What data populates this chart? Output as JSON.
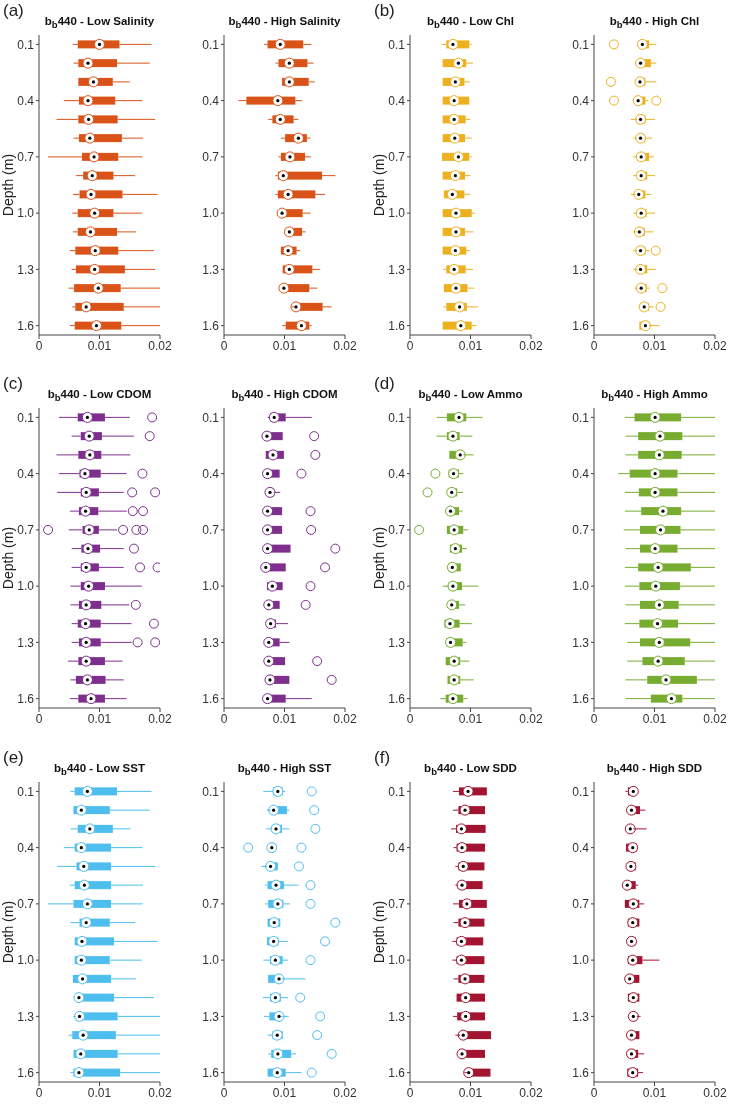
{
  "chart_data": [
    {
      "type": "box",
      "orientation": "horizontal",
      "title": "b$_{b}$440 - Low Salinity",
      "ylabel": "Depth (m)",
      "annotations": [
        "(a)"
      ],
      "color": "#d95319",
      "xlim": [
        0,
        0.02
      ],
      "xticks": [
        0,
        0.01,
        0.02
      ],
      "categories": [
        "0.1",
        null,
        null,
        "0.4",
        null,
        null,
        "0.7",
        null,
        null,
        "1.0",
        null,
        null,
        "1.3",
        null,
        null,
        "1.6"
      ],
      "boxes": [
        {
          "low": 0.0056,
          "q1": 0.0064,
          "median": 0.01,
          "q3": 0.0133,
          "high": 0.0186
        },
        {
          "low": 0.0057,
          "q1": 0.0065,
          "median": 0.0081,
          "q3": 0.0129,
          "high": 0.0183
        },
        {
          "low": 0.0065,
          "q1": 0.0065,
          "median": 0.009,
          "q3": 0.0122,
          "high": 0.015
        },
        {
          "low": 0.0041,
          "q1": 0.0066,
          "median": 0.0081,
          "q3": 0.0126,
          "high": 0.0171
        },
        {
          "low": 0.0029,
          "q1": 0.0065,
          "median": 0.0082,
          "q3": 0.013,
          "high": 0.0192
        },
        {
          "low": 0.0057,
          "q1": 0.0066,
          "median": 0.0084,
          "q3": 0.0137,
          "high": 0.0172
        },
        {
          "low": 0.0015,
          "q1": 0.0071,
          "median": 0.0091,
          "q3": 0.0131,
          "high": 0.0171
        },
        {
          "low": 0.0061,
          "q1": 0.0073,
          "median": 0.0088,
          "q3": 0.0123,
          "high": 0.0159
        },
        {
          "low": 0.0056,
          "q1": 0.0067,
          "median": 0.0086,
          "q3": 0.0138,
          "high": 0.0196
        },
        {
          "low": 0.0055,
          "q1": 0.0064,
          "median": 0.0092,
          "q3": 0.0123,
          "high": 0.017
        },
        {
          "low": 0.0056,
          "q1": 0.0064,
          "median": 0.0085,
          "q3": 0.0129,
          "high": 0.016
        },
        {
          "low": 0.0051,
          "q1": 0.006,
          "median": 0.0093,
          "q3": 0.0131,
          "high": 0.019
        },
        {
          "low": 0.0054,
          "q1": 0.0061,
          "median": 0.0092,
          "q3": 0.0142,
          "high": 0.0192
        },
        {
          "low": 0.0049,
          "q1": 0.0058,
          "median": 0.0098,
          "q3": 0.0135,
          "high": 0.02
        },
        {
          "low": 0.0055,
          "q1": 0.006,
          "median": 0.0078,
          "q3": 0.014,
          "high": 0.02
        },
        {
          "low": 0.0051,
          "q1": 0.0059,
          "median": 0.0095,
          "q3": 0.0136,
          "high": 0.02
        }
      ]
    },
    {
      "type": "box",
      "orientation": "horizontal",
      "title": "b$_{b}$440 - High Salinity",
      "color": "#d95319",
      "xlim": [
        0,
        0.02
      ],
      "xticks": [
        0,
        0.01,
        0.02
      ],
      "categories": [
        "0.1",
        null,
        null,
        "0.4",
        null,
        null,
        "0.7",
        null,
        null,
        "1.0",
        null,
        null,
        "1.3",
        null,
        null,
        "1.6"
      ],
      "boxes": [
        {
          "low": 0.0066,
          "q1": 0.0072,
          "median": 0.0093,
          "q3": 0.0131,
          "high": 0.0144
        },
        {
          "low": 0.0085,
          "q1": 0.009,
          "median": 0.0108,
          "q3": 0.0138,
          "high": 0.0148
        },
        {
          "low": 0.0096,
          "q1": 0.0096,
          "median": 0.0108,
          "q3": 0.014,
          "high": 0.015
        },
        {
          "low": 0.0024,
          "q1": 0.0037,
          "median": 0.0089,
          "q3": 0.0118,
          "high": 0.0129
        },
        {
          "low": 0.0073,
          "q1": 0.008,
          "median": 0.0093,
          "q3": 0.0115,
          "high": 0.0123
        },
        {
          "low": 0.0094,
          "q1": 0.0101,
          "median": 0.0123,
          "q3": 0.0137,
          "high": 0.0143
        },
        {
          "low": 0.009,
          "q1": 0.0094,
          "median": 0.0109,
          "q3": 0.0134,
          "high": 0.0144
        },
        {
          "low": 0.0085,
          "q1": 0.0089,
          "median": 0.0098,
          "q3": 0.0162,
          "high": 0.0184
        },
        {
          "low": 0.0085,
          "q1": 0.0089,
          "median": 0.0106,
          "q3": 0.0151,
          "high": 0.0167
        },
        {
          "low": 0.0091,
          "q1": 0.0091,
          "median": 0.0096,
          "q3": 0.013,
          "high": 0.0143
        },
        {
          "low": 0.0102,
          "q1": 0.0102,
          "median": 0.0108,
          "q3": 0.0129,
          "high": 0.0135
        },
        {
          "low": 0.0094,
          "q1": 0.0094,
          "median": 0.0106,
          "q3": 0.012,
          "high": 0.0126
        },
        {
          "low": 0.0097,
          "q1": 0.0097,
          "median": 0.0108,
          "q3": 0.0146,
          "high": 0.0159
        },
        {
          "low": 0.0096,
          "q1": 0.0096,
          "median": 0.0099,
          "q3": 0.0141,
          "high": 0.0154
        },
        {
          "low": 0.0112,
          "q1": 0.0116,
          "median": 0.0119,
          "q3": 0.0163,
          "high": 0.0178
        },
        {
          "low": 0.0096,
          "q1": 0.0102,
          "median": 0.0128,
          "q3": 0.0141,
          "high": 0.0145
        }
      ]
    },
    {
      "type": "box",
      "orientation": "horizontal",
      "title": "b$_{b}$440 - Low Chl",
      "ylabel": "Depth (m)",
      "annotations": [
        "(b)"
      ],
      "color": "#edb120",
      "xlim": [
        0,
        0.02
      ],
      "xticks": [
        0,
        0.01,
        0.02
      ],
      "categories": [
        "0.1",
        null,
        null,
        "0.4",
        null,
        null,
        "0.7",
        null,
        null,
        "1.0",
        null,
        null,
        "1.3",
        null,
        null,
        "1.6"
      ],
      "boxes": [
        {
          "low": 0.0052,
          "q1": 0.006,
          "median": 0.0071,
          "q3": 0.0098,
          "high": 0.0102
        },
        {
          "low": 0.0054,
          "q1": 0.0054,
          "median": 0.008,
          "q3": 0.0093,
          "high": 0.0104
        },
        {
          "low": 0.0054,
          "q1": 0.0054,
          "median": 0.0075,
          "q3": 0.009,
          "high": 0.0099
        },
        {
          "low": 0.0054,
          "q1": 0.0054,
          "median": 0.0073,
          "q3": 0.0098,
          "high": 0.0098
        },
        {
          "low": 0.0054,
          "q1": 0.0054,
          "median": 0.0073,
          "q3": 0.0092,
          "high": 0.01
        },
        {
          "low": 0.0054,
          "q1": 0.0054,
          "median": 0.0074,
          "q3": 0.0091,
          "high": 0.0102
        },
        {
          "low": 0.0053,
          "q1": 0.0053,
          "median": 0.008,
          "q3": 0.0098,
          "high": 0.0102
        },
        {
          "low": 0.0054,
          "q1": 0.0054,
          "median": 0.0075,
          "q3": 0.0091,
          "high": 0.01
        },
        {
          "low": 0.0056,
          "q1": 0.0056,
          "median": 0.007,
          "q3": 0.009,
          "high": 0.0099
        },
        {
          "low": 0.0054,
          "q1": 0.0054,
          "median": 0.0076,
          "q3": 0.0102,
          "high": 0.0108
        },
        {
          "low": 0.0054,
          "q1": 0.0054,
          "median": 0.0076,
          "q3": 0.0091,
          "high": 0.0105
        },
        {
          "low": 0.0054,
          "q1": 0.0054,
          "median": 0.0075,
          "q3": 0.0093,
          "high": 0.0099
        },
        {
          "low": 0.0055,
          "q1": 0.006,
          "median": 0.0073,
          "q3": 0.0092,
          "high": 0.0104
        },
        {
          "low": 0.0056,
          "q1": 0.0056,
          "median": 0.0076,
          "q3": 0.0095,
          "high": 0.0106
        },
        {
          "low": 0.0055,
          "q1": 0.006,
          "median": 0.0082,
          "q3": 0.0094,
          "high": 0.0113
        },
        {
          "low": 0.0054,
          "q1": 0.0054,
          "median": 0.0084,
          "q3": 0.0102,
          "high": 0.011
        }
      ]
    },
    {
      "type": "box",
      "orientation": "horizontal",
      "title": "b$_{b}$440 - High Chl",
      "color": "#edb120",
      "xlim": [
        0,
        0.02
      ],
      "xticks": [
        0,
        0.01,
        0.02
      ],
      "categories": [
        "0.1",
        null,
        null,
        "0.4",
        null,
        null,
        "0.7",
        null,
        null,
        "1.0",
        null,
        null,
        "1.3",
        null,
        null,
        "1.6"
      ],
      "boxes": [
        {
          "low": 0.0074,
          "q1": 0.0074,
          "median": 0.008,
          "q3": 0.0091,
          "high": 0.0103,
          "outliers": [
            0.0033
          ]
        },
        {
          "low": 0.0073,
          "q1": 0.0073,
          "median": 0.0077,
          "q3": 0.0094,
          "high": 0.0103
        },
        {
          "low": 0.0071,
          "q1": 0.0071,
          "median": 0.0076,
          "q3": 0.0085,
          "high": 0.0103,
          "outliers": [
            0.0028
          ]
        },
        {
          "low": 0.007,
          "q1": 0.007,
          "median": 0.0073,
          "q3": 0.0085,
          "high": 0.009,
          "outliers": [
            0.0033,
            0.0103
          ]
        },
        {
          "low": 0.0061,
          "q1": 0.0071,
          "median": 0.0077,
          "q3": 0.0085,
          "high": 0.0101
        },
        {
          "low": 0.0065,
          "q1": 0.0071,
          "median": 0.0077,
          "q3": 0.0084,
          "high": 0.0096
        },
        {
          "low": 0.0065,
          "q1": 0.0071,
          "median": 0.0078,
          "q3": 0.0091,
          "high": 0.0099
        },
        {
          "low": 0.0065,
          "q1": 0.0071,
          "median": 0.0078,
          "q3": 0.0088,
          "high": 0.0101
        },
        {
          "low": 0.0061,
          "q1": 0.0069,
          "median": 0.0074,
          "q3": 0.0085,
          "high": 0.0095
        },
        {
          "low": 0.0065,
          "q1": 0.0071,
          "median": 0.0078,
          "q3": 0.0087,
          "high": 0.0101
        },
        {
          "low": 0.0065,
          "q1": 0.0071,
          "median": 0.0075,
          "q3": 0.0084,
          "high": 0.0098
        },
        {
          "low": 0.0065,
          "q1": 0.0071,
          "median": 0.0077,
          "q3": 0.0085,
          "high": 0.0092,
          "outliers": [
            0.0102
          ]
        },
        {
          "low": 0.0065,
          "q1": 0.0072,
          "median": 0.0077,
          "q3": 0.0088,
          "high": 0.0102
        },
        {
          "low": 0.0067,
          "q1": 0.0072,
          "median": 0.0078,
          "q3": 0.0087,
          "high": 0.0092,
          "outliers": [
            0.0113
          ]
        },
        {
          "low": 0.0076,
          "q1": 0.0076,
          "median": 0.0083,
          "q3": 0.0091,
          "high": 0.0099,
          "outliers": [
            0.011
          ]
        },
        {
          "low": 0.0075,
          "q1": 0.0075,
          "median": 0.0085,
          "q3": 0.0091,
          "high": 0.0108
        }
      ]
    },
    {
      "type": "box",
      "orientation": "horizontal",
      "title": "b$_{b}$440 - Low CDOM",
      "ylabel": "Depth (m)",
      "annotations": [
        "(c)"
      ],
      "color": "#7e2f8e",
      "xlim": [
        0,
        0.02
      ],
      "xticks": [
        0,
        0.01,
        0.02
      ],
      "categories": [
        "0.1",
        null,
        null,
        "0.4",
        null,
        null,
        "0.7",
        null,
        null,
        "1.0",
        null,
        null,
        "1.3",
        null,
        null,
        "1.6"
      ],
      "boxes": [
        {
          "low": 0.0033,
          "q1": 0.0064,
          "median": 0.008,
          "q3": 0.0109,
          "high": 0.015,
          "outliers": [
            0.0187
          ]
        },
        {
          "low": 0.0054,
          "q1": 0.0069,
          "median": 0.0083,
          "q3": 0.0104,
          "high": 0.0157,
          "outliers": [
            0.0183
          ]
        },
        {
          "low": 0.0029,
          "q1": 0.0065,
          "median": 0.0084,
          "q3": 0.0103,
          "high": 0.0151
        },
        {
          "low": 0.0033,
          "q1": 0.0067,
          "median": 0.0076,
          "q3": 0.0102,
          "high": 0.0145,
          "outliers": [
            0.0171
          ]
        },
        {
          "low": 0.003,
          "q1": 0.0069,
          "median": 0.0078,
          "q3": 0.0099,
          "high": 0.014,
          "outliers": [
            0.0154,
            0.0192
          ]
        },
        {
          "low": 0.0051,
          "q1": 0.0066,
          "median": 0.0077,
          "q3": 0.0098,
          "high": 0.0145,
          "outliers": [
            0.0155,
            0.0172
          ]
        },
        {
          "low": 0.0049,
          "q1": 0.0072,
          "median": 0.0083,
          "q3": 0.0099,
          "high": 0.0129,
          "outliers": [
            0.0015,
            0.0139,
            0.0161,
            0.0172
          ]
        },
        {
          "low": 0.0054,
          "q1": 0.007,
          "median": 0.0081,
          "q3": 0.0101,
          "high": 0.014,
          "outliers": [
            0.0157
          ]
        },
        {
          "low": 0.0054,
          "q1": 0.0069,
          "median": 0.0078,
          "q3": 0.0099,
          "high": 0.014,
          "outliers": [
            0.0167,
            0.0196
          ]
        },
        {
          "low": 0.0052,
          "q1": 0.0069,
          "median": 0.0082,
          "q3": 0.0109,
          "high": 0.017
        },
        {
          "low": 0.0052,
          "q1": 0.0066,
          "median": 0.0078,
          "q3": 0.0103,
          "high": 0.0149,
          "outliers": [
            0.016
          ]
        },
        {
          "low": 0.0054,
          "q1": 0.0064,
          "median": 0.0077,
          "q3": 0.0102,
          "high": 0.0153,
          "outliers": [
            0.019
          ]
        },
        {
          "low": 0.0054,
          "q1": 0.0066,
          "median": 0.0078,
          "q3": 0.0102,
          "high": 0.0153,
          "outliers": [
            0.0163,
            0.0192
          ]
        },
        {
          "low": 0.0048,
          "q1": 0.0065,
          "median": 0.0078,
          "q3": 0.0109,
          "high": 0.0138
        },
        {
          "low": 0.0052,
          "q1": 0.0061,
          "median": 0.008,
          "q3": 0.011,
          "high": 0.014
        },
        {
          "low": 0.0051,
          "q1": 0.0065,
          "median": 0.0086,
          "q3": 0.0109,
          "high": 0.0145
        }
      ]
    },
    {
      "type": "box",
      "orientation": "horizontal",
      "title": "b$_{b}$440 - High CDOM",
      "color": "#7e2f8e",
      "xlim": [
        0,
        0.02
      ],
      "xticks": [
        0,
        0.01,
        0.02
      ],
      "categories": [
        "0.1",
        null,
        null,
        "0.4",
        null,
        null,
        "0.7",
        null,
        null,
        "1.0",
        null,
        null,
        "1.3",
        null,
        null,
        "1.6"
      ],
      "boxes": [
        {
          "low": 0.0072,
          "q1": 0.0076,
          "median": 0.0083,
          "q3": 0.0102,
          "high": 0.0145
        },
        {
          "low": 0.0068,
          "q1": 0.0068,
          "median": 0.0071,
          "q3": 0.0097,
          "high": 0.0097,
          "outliers": [
            0.0149
          ]
        },
        {
          "low": 0.0069,
          "q1": 0.0069,
          "median": 0.0081,
          "q3": 0.0099,
          "high": 0.0099,
          "outliers": [
            0.0151
          ]
        },
        {
          "low": 0.0068,
          "q1": 0.0068,
          "median": 0.0072,
          "q3": 0.0092,
          "high": 0.0092,
          "outliers": [
            0.0128
          ]
        },
        {
          "low": 0.0072,
          "q1": 0.0072,
          "median": 0.0076,
          "q3": 0.0083,
          "high": 0.0093
        },
        {
          "low": 0.0068,
          "q1": 0.0068,
          "median": 0.0072,
          "q3": 0.0096,
          "high": 0.0096,
          "outliers": [
            0.0143
          ]
        },
        {
          "low": 0.0068,
          "q1": 0.0068,
          "median": 0.0072,
          "q3": 0.0096,
          "high": 0.0096,
          "outliers": [
            0.0144
          ]
        },
        {
          "low": 0.0068,
          "q1": 0.0068,
          "median": 0.0072,
          "q3": 0.011,
          "high": 0.011,
          "outliers": [
            0.0184
          ]
        },
        {
          "low": 0.0065,
          "q1": 0.0065,
          "median": 0.0069,
          "q3": 0.0102,
          "high": 0.0102,
          "outliers": [
            0.0167
          ]
        },
        {
          "low": 0.0071,
          "q1": 0.0071,
          "median": 0.008,
          "q3": 0.0097,
          "high": 0.0097,
          "outliers": [
            0.0143
          ]
        },
        {
          "low": 0.007,
          "q1": 0.007,
          "median": 0.0074,
          "q3": 0.0092,
          "high": 0.0092,
          "outliers": [
            0.0135
          ]
        },
        {
          "low": 0.0072,
          "q1": 0.0072,
          "median": 0.0077,
          "q3": 0.0086,
          "high": 0.0106
        },
        {
          "low": 0.007,
          "q1": 0.007,
          "median": 0.0074,
          "q3": 0.0092,
          "high": 0.0108
        },
        {
          "low": 0.007,
          "q1": 0.007,
          "median": 0.0074,
          "q3": 0.0101,
          "high": 0.0101,
          "outliers": [
            0.0154
          ]
        },
        {
          "low": 0.007,
          "q1": 0.007,
          "median": 0.0076,
          "q3": 0.0108,
          "high": 0.0108,
          "outliers": [
            0.0178
          ]
        },
        {
          "low": 0.0068,
          "q1": 0.0068,
          "median": 0.0072,
          "q3": 0.0102,
          "high": 0.0145
        }
      ]
    },
    {
      "type": "box",
      "orientation": "horizontal",
      "title": "b$_{b}$440 - Low Ammo",
      "ylabel": "Depth (m)",
      "annotations": [
        "(d)"
      ],
      "color": "#77ac30",
      "xlim": [
        0,
        0.02
      ],
      "xticks": [
        0,
        0.01,
        0.02
      ],
      "categories": [
        "0.1",
        null,
        null,
        "0.4",
        null,
        null,
        "0.7",
        null,
        null,
        "1.0",
        null,
        null,
        "1.3",
        null,
        null,
        "1.6"
      ],
      "boxes": [
        {
          "low": 0.0044,
          "q1": 0.0061,
          "median": 0.0081,
          "q3": 0.0093,
          "high": 0.012
        },
        {
          "low": 0.0044,
          "q1": 0.0061,
          "median": 0.0071,
          "q3": 0.0082,
          "high": 0.0103
        },
        {
          "low": 0.0065,
          "q1": 0.0065,
          "median": 0.0083,
          "q3": 0.0088,
          "high": 0.0105
        },
        {
          "low": 0.0064,
          "q1": 0.0064,
          "median": 0.0072,
          "q3": 0.0081,
          "high": 0.0088,
          "outliers": [
            0.0042
          ]
        },
        {
          "low": 0.0063,
          "q1": 0.0063,
          "median": 0.0069,
          "q3": 0.0078,
          "high": 0.0088,
          "outliers": [
            0.0029
          ]
        },
        {
          "low": 0.0061,
          "q1": 0.0061,
          "median": 0.0067,
          "q3": 0.0081,
          "high": 0.0087
        },
        {
          "low": 0.0061,
          "q1": 0.0061,
          "median": 0.0073,
          "q3": 0.0088,
          "high": 0.0096,
          "outliers": [
            0.0015
          ]
        },
        {
          "low": 0.0066,
          "q1": 0.0066,
          "median": 0.0075,
          "q3": 0.0086,
          "high": 0.0094
        },
        {
          "low": 0.0063,
          "q1": 0.0063,
          "median": 0.007,
          "q3": 0.0084,
          "high": 0.0084
        },
        {
          "low": 0.0054,
          "q1": 0.0064,
          "median": 0.0071,
          "q3": 0.0086,
          "high": 0.0113
        },
        {
          "low": 0.0063,
          "q1": 0.0063,
          "median": 0.0069,
          "q3": 0.0081,
          "high": 0.0091
        },
        {
          "low": 0.0057,
          "q1": 0.0057,
          "median": 0.0066,
          "q3": 0.0082,
          "high": 0.0102
        },
        {
          "low": 0.006,
          "q1": 0.006,
          "median": 0.0067,
          "q3": 0.0087,
          "high": 0.0093
        },
        {
          "low": 0.0059,
          "q1": 0.0059,
          "median": 0.0073,
          "q3": 0.0083,
          "high": 0.0098
        },
        {
          "low": 0.0062,
          "q1": 0.0062,
          "median": 0.0073,
          "q3": 0.0083,
          "high": 0.0105
        },
        {
          "low": 0.005,
          "q1": 0.0059,
          "median": 0.0071,
          "q3": 0.0088,
          "high": 0.0095
        }
      ]
    },
    {
      "type": "box",
      "orientation": "horizontal",
      "title": "b$_{b}$440 - High Ammo",
      "color": "#77ac30",
      "xlim": [
        0,
        0.02
      ],
      "xticks": [
        0,
        0.01,
        0.02
      ],
      "categories": [
        "0.1",
        null,
        null,
        "0.4",
        null,
        null,
        "0.7",
        null,
        null,
        "1.0",
        null,
        null,
        "1.3",
        null,
        null,
        "1.6"
      ],
      "boxes": [
        {
          "low": 0.0051,
          "q1": 0.0067,
          "median": 0.0101,
          "q3": 0.0144,
          "high": 0.02
        },
        {
          "low": 0.0052,
          "q1": 0.0073,
          "median": 0.0109,
          "q3": 0.0146,
          "high": 0.02
        },
        {
          "low": 0.0052,
          "q1": 0.0073,
          "median": 0.0108,
          "q3": 0.0145,
          "high": 0.02
        },
        {
          "low": 0.004,
          "q1": 0.0059,
          "median": 0.0101,
          "q3": 0.0138,
          "high": 0.02
        },
        {
          "low": 0.0051,
          "q1": 0.0074,
          "median": 0.0101,
          "q3": 0.0138,
          "high": 0.02
        },
        {
          "low": 0.0051,
          "q1": 0.0078,
          "median": 0.0114,
          "q3": 0.0144,
          "high": 0.02
        },
        {
          "low": 0.0049,
          "q1": 0.0076,
          "median": 0.011,
          "q3": 0.0143,
          "high": 0.02
        },
        {
          "low": 0.0052,
          "q1": 0.0076,
          "median": 0.0101,
          "q3": 0.0138,
          "high": 0.02
        },
        {
          "low": 0.0051,
          "q1": 0.0073,
          "median": 0.0106,
          "q3": 0.016,
          "high": 0.02
        },
        {
          "low": 0.0051,
          "q1": 0.0075,
          "median": 0.0102,
          "q3": 0.0142,
          "high": 0.02
        },
        {
          "low": 0.0052,
          "q1": 0.0076,
          "median": 0.0108,
          "q3": 0.014,
          "high": 0.02
        },
        {
          "low": 0.0051,
          "q1": 0.0075,
          "median": 0.0105,
          "q3": 0.0139,
          "high": 0.02
        },
        {
          "low": 0.0055,
          "q1": 0.0076,
          "median": 0.0108,
          "q3": 0.0159,
          "high": 0.02
        },
        {
          "low": 0.0055,
          "q1": 0.008,
          "median": 0.0106,
          "q3": 0.015,
          "high": 0.02
        },
        {
          "low": 0.0052,
          "q1": 0.0088,
          "median": 0.0119,
          "q3": 0.017,
          "high": 0.02
        },
        {
          "low": 0.0052,
          "q1": 0.0094,
          "median": 0.0128,
          "q3": 0.0146,
          "high": 0.02
        }
      ]
    },
    {
      "type": "box",
      "orientation": "horizontal",
      "title": "b$_{b}$440 - Low SST",
      "ylabel": "Depth (m)",
      "annotations": [
        "(e)"
      ],
      "color": "#4dbeee",
      "xlim": [
        0,
        0.02
      ],
      "xticks": [
        0,
        0.01,
        0.02
      ],
      "categories": [
        "0.1",
        null,
        null,
        "0.4",
        null,
        null,
        "0.7",
        null,
        null,
        "1.0",
        null,
        null,
        "1.3",
        null,
        null,
        "1.6"
      ],
      "boxes": [
        {
          "low": 0.0052,
          "q1": 0.0059,
          "median": 0.008,
          "q3": 0.0129,
          "high": 0.0186
        },
        {
          "low": 0.0057,
          "q1": 0.0057,
          "median": 0.007,
          "q3": 0.0117,
          "high": 0.0183
        },
        {
          "low": 0.0052,
          "q1": 0.0064,
          "median": 0.0084,
          "q3": 0.0122,
          "high": 0.0151
        },
        {
          "low": 0.0041,
          "q1": 0.0059,
          "median": 0.007,
          "q3": 0.0119,
          "high": 0.0171
        },
        {
          "low": 0.003,
          "q1": 0.0062,
          "median": 0.0074,
          "q3": 0.0119,
          "high": 0.0192
        },
        {
          "low": 0.0051,
          "q1": 0.0059,
          "median": 0.0075,
          "q3": 0.0119,
          "high": 0.0172
        },
        {
          "low": 0.0015,
          "q1": 0.0057,
          "median": 0.008,
          "q3": 0.0119,
          "high": 0.0171
        },
        {
          "low": 0.0052,
          "q1": 0.0067,
          "median": 0.0078,
          "q3": 0.0117,
          "high": 0.0159
        },
        {
          "low": 0.0059,
          "q1": 0.0059,
          "median": 0.0071,
          "q3": 0.0124,
          "high": 0.0196
        },
        {
          "low": 0.0059,
          "q1": 0.0059,
          "median": 0.007,
          "q3": 0.0117,
          "high": 0.017
        },
        {
          "low": 0.0056,
          "q1": 0.0056,
          "median": 0.0072,
          "q3": 0.0119,
          "high": 0.016
        },
        {
          "low": 0.0061,
          "q1": 0.0061,
          "median": 0.0066,
          "q3": 0.0124,
          "high": 0.019
        },
        {
          "low": 0.0057,
          "q1": 0.0061,
          "median": 0.0067,
          "q3": 0.013,
          "high": 0.02
        },
        {
          "low": 0.0049,
          "q1": 0.0055,
          "median": 0.0073,
          "q3": 0.0127,
          "high": 0.02
        },
        {
          "low": 0.0057,
          "q1": 0.0057,
          "median": 0.0069,
          "q3": 0.013,
          "high": 0.02
        },
        {
          "low": 0.0052,
          "q1": 0.0057,
          "median": 0.0066,
          "q3": 0.0134,
          "high": 0.02
        }
      ]
    },
    {
      "type": "box",
      "orientation": "horizontal",
      "title": "b$_{b}$440 - High SST",
      "color": "#4dbeee",
      "xlim": [
        0,
        0.02
      ],
      "xticks": [
        0,
        0.01,
        0.02
      ],
      "categories": [
        "0.1",
        null,
        null,
        "0.4",
        null,
        null,
        "0.7",
        null,
        null,
        "1.0",
        null,
        null,
        "1.3",
        null,
        null,
        "1.6"
      ],
      "boxes": [
        {
          "low": 0.0065,
          "q1": 0.0081,
          "median": 0.0089,
          "q3": 0.0097,
          "high": 0.0101,
          "outliers": [
            0.0145
          ]
        },
        {
          "low": 0.0071,
          "q1": 0.0078,
          "median": 0.0082,
          "q3": 0.0104,
          "high": 0.0108,
          "outliers": [
            0.0149
          ]
        },
        {
          "low": 0.007,
          "q1": 0.0079,
          "median": 0.0086,
          "q3": 0.0096,
          "high": 0.0108,
          "outliers": [
            0.0151
          ]
        },
        {
          "low": 0.0075,
          "q1": 0.0075,
          "median": 0.0079,
          "q3": 0.0086,
          "high": 0.0086,
          "outliers": [
            0.004,
            0.0128
          ]
        },
        {
          "low": 0.0062,
          "q1": 0.0072,
          "median": 0.0077,
          "q3": 0.0089,
          "high": 0.0089,
          "outliers": [
            0.0124
          ]
        },
        {
          "low": 0.0068,
          "q1": 0.0072,
          "median": 0.0086,
          "q3": 0.0099,
          "high": 0.0123,
          "outliers": [
            0.0143
          ]
        },
        {
          "low": 0.0068,
          "q1": 0.0073,
          "median": 0.0089,
          "q3": 0.0098,
          "high": 0.0109,
          "outliers": [
            0.0143
          ]
        },
        {
          "low": 0.0072,
          "q1": 0.0072,
          "median": 0.0083,
          "q3": 0.0093,
          "high": 0.0093,
          "outliers": [
            0.0184
          ]
        },
        {
          "low": 0.0071,
          "q1": 0.0071,
          "median": 0.0082,
          "q3": 0.009,
          "high": 0.0106,
          "outliers": [
            0.0167
          ]
        },
        {
          "low": 0.0065,
          "q1": 0.0076,
          "median": 0.0085,
          "q3": 0.0097,
          "high": 0.0106,
          "outliers": [
            0.0143
          ]
        },
        {
          "low": 0.0073,
          "q1": 0.0073,
          "median": 0.0091,
          "q3": 0.0095,
          "high": 0.0135
        },
        {
          "low": 0.0064,
          "q1": 0.0076,
          "median": 0.0085,
          "q3": 0.0094,
          "high": 0.0106,
          "outliers": [
            0.0126
          ]
        },
        {
          "low": 0.0066,
          "q1": 0.0075,
          "median": 0.0091,
          "q3": 0.0095,
          "high": 0.0107,
          "outliers": [
            0.0159
          ]
        },
        {
          "low": 0.0072,
          "q1": 0.008,
          "median": 0.0088,
          "q3": 0.0097,
          "high": 0.0097,
          "outliers": [
            0.0154
          ]
        },
        {
          "low": 0.0073,
          "q1": 0.0078,
          "median": 0.0089,
          "q3": 0.0111,
          "high": 0.0119,
          "outliers": [
            0.0178
          ]
        },
        {
          "low": 0.0072,
          "q1": 0.0072,
          "median": 0.0088,
          "q3": 0.0102,
          "high": 0.0128,
          "outliers": [
            0.0145
          ]
        }
      ]
    },
    {
      "type": "box",
      "orientation": "horizontal",
      "title": "b$_{b}$440 - Low SDD",
      "ylabel": "Depth (m)",
      "annotations": [
        "(f)"
      ],
      "color": "#a2142f",
      "xlim": [
        0,
        0.02
      ],
      "xticks": [
        0,
        0.01,
        0.02
      ],
      "categories": [
        "0.1",
        null,
        null,
        "0.4",
        null,
        null,
        "0.7",
        null,
        null,
        "1.0",
        null,
        null,
        "1.3",
        null,
        null,
        "1.6"
      ],
      "boxes": [
        {
          "low": 0.0071,
          "q1": 0.0081,
          "median": 0.0096,
          "q3": 0.0127,
          "high": 0.0127
        },
        {
          "low": 0.0071,
          "q1": 0.008,
          "median": 0.0091,
          "q3": 0.0124,
          "high": 0.0124
        },
        {
          "low": 0.0068,
          "q1": 0.0076,
          "median": 0.0085,
          "q3": 0.0125,
          "high": 0.0125
        },
        {
          "low": 0.0072,
          "q1": 0.0077,
          "median": 0.0086,
          "q3": 0.0124,
          "high": 0.0124
        },
        {
          "low": 0.0075,
          "q1": 0.008,
          "median": 0.0088,
          "q3": 0.0123,
          "high": 0.0123
        },
        {
          "low": 0.0075,
          "q1": 0.0079,
          "median": 0.0086,
          "q3": 0.012,
          "high": 0.012
        },
        {
          "low": 0.0071,
          "q1": 0.0081,
          "median": 0.0094,
          "q3": 0.0127,
          "high": 0.0127
        },
        {
          "low": 0.0072,
          "q1": 0.008,
          "median": 0.0091,
          "q3": 0.0123,
          "high": 0.0123
        },
        {
          "low": 0.007,
          "q1": 0.0077,
          "median": 0.0085,
          "q3": 0.0121,
          "high": 0.0121
        },
        {
          "low": 0.007,
          "q1": 0.0077,
          "median": 0.0085,
          "q3": 0.0123,
          "high": 0.0123
        },
        {
          "low": 0.0072,
          "q1": 0.008,
          "median": 0.0091,
          "q3": 0.0123,
          "high": 0.0123
        },
        {
          "low": 0.0077,
          "q1": 0.0077,
          "median": 0.0092,
          "q3": 0.0124,
          "high": 0.0124
        },
        {
          "low": 0.0071,
          "q1": 0.0078,
          "median": 0.0092,
          "q3": 0.0124,
          "high": 0.0124
        },
        {
          "low": 0.0075,
          "q1": 0.0083,
          "median": 0.0088,
          "q3": 0.0134,
          "high": 0.0134
        },
        {
          "low": 0.0082,
          "q1": 0.0082,
          "median": 0.0086,
          "q3": 0.0124,
          "high": 0.0124
        },
        {
          "low": 0.009,
          "q1": 0.0094,
          "median": 0.0097,
          "q3": 0.0133,
          "high": 0.0133
        }
      ]
    },
    {
      "type": "box",
      "orientation": "horizontal",
      "title": "b$_{b}$440 - High SDD",
      "color": "#a2142f",
      "xlim": [
        0,
        0.02
      ],
      "xticks": [
        0,
        0.01,
        0.02
      ],
      "categories": [
        "0.1",
        null,
        null,
        "0.4",
        null,
        null,
        "0.7",
        null,
        null,
        "1.0",
        null,
        null,
        "1.3",
        null,
        null,
        "1.6"
      ],
      "boxes": [
        {
          "low": 0.0052,
          "q1": 0.0056,
          "median": 0.0065,
          "q3": 0.007,
          "high": 0.007
        },
        {
          "low": 0.0059,
          "q1": 0.0059,
          "median": 0.0062,
          "q3": 0.0076,
          "high": 0.0085
        },
        {
          "low": 0.0056,
          "q1": 0.0056,
          "median": 0.006,
          "q3": 0.0065,
          "high": 0.0087
        },
        {
          "low": 0.0053,
          "q1": 0.0053,
          "median": 0.0064,
          "q3": 0.0071,
          "high": 0.0071
        },
        {
          "low": 0.0056,
          "q1": 0.0056,
          "median": 0.0061,
          "q3": 0.0069,
          "high": 0.0069
        },
        {
          "low": 0.0051,
          "q1": 0.0051,
          "median": 0.0055,
          "q3": 0.0069,
          "high": 0.0073
        },
        {
          "low": 0.0051,
          "q1": 0.0051,
          "median": 0.0065,
          "q3": 0.0075,
          "high": 0.0083
        },
        {
          "low": 0.0056,
          "q1": 0.0056,
          "median": 0.0064,
          "q3": 0.0075,
          "high": 0.0075
        },
        {
          "low": 0.0056,
          "q1": 0.0056,
          "median": 0.0062,
          "q3": 0.0069,
          "high": 0.0069
        },
        {
          "low": 0.0056,
          "q1": 0.0056,
          "median": 0.0064,
          "q3": 0.008,
          "high": 0.0108
        },
        {
          "low": 0.0056,
          "q1": 0.0056,
          "median": 0.0059,
          "q3": 0.0075,
          "high": 0.0075
        },
        {
          "low": 0.0056,
          "q1": 0.0056,
          "median": 0.0065,
          "q3": 0.0075,
          "high": 0.0075
        },
        {
          "low": 0.0059,
          "q1": 0.0059,
          "median": 0.0065,
          "q3": 0.0071,
          "high": 0.0077
        },
        {
          "low": 0.0058,
          "q1": 0.0058,
          "median": 0.0062,
          "q3": 0.0075,
          "high": 0.0075
        },
        {
          "low": 0.0056,
          "q1": 0.0056,
          "median": 0.0062,
          "q3": 0.0073,
          "high": 0.0083
        },
        {
          "low": 0.0055,
          "q1": 0.0055,
          "median": 0.0064,
          "q3": 0.0073,
          "high": 0.0081
        }
      ]
    }
  ]
}
